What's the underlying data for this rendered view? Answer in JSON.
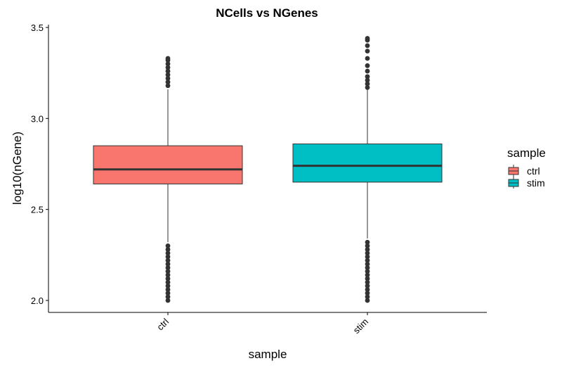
{
  "chart_data": {
    "type": "box",
    "title": "NCells vs NGenes",
    "xlabel": "sample",
    "ylabel": "log10(nGene)",
    "ylim": [
      1.95,
      3.52
    ],
    "yticks": [
      2.0,
      2.5,
      3.0,
      3.5
    ],
    "ytick_labels": [
      "2.0",
      "2.5",
      "3.0",
      "3.5"
    ],
    "categories": [
      "ctrl",
      "stim"
    ],
    "legend": {
      "title": "sample",
      "position": "right",
      "entries": [
        "ctrl",
        "stim"
      ]
    },
    "series": [
      {
        "name": "ctrl",
        "color": "#F8766D",
        "q1": 2.64,
        "median": 2.72,
        "q3": 2.85,
        "whisker_low": 2.32,
        "whisker_high": 3.16,
        "outliers": [
          2.0,
          2.02,
          2.04,
          2.06,
          2.08,
          2.1,
          2.12,
          2.14,
          2.16,
          2.18,
          2.2,
          2.22,
          2.24,
          2.26,
          2.28,
          2.3,
          3.18,
          3.2,
          3.22,
          3.24,
          3.26,
          3.28,
          3.3,
          3.32,
          3.33
        ]
      },
      {
        "name": "stim",
        "color": "#00BFC4",
        "q1": 2.65,
        "median": 2.74,
        "q3": 2.86,
        "whisker_low": 2.34,
        "whisker_high": 3.16,
        "outliers": [
          2.0,
          2.02,
          2.04,
          2.06,
          2.08,
          2.1,
          2.12,
          2.14,
          2.16,
          2.18,
          2.2,
          2.22,
          2.24,
          2.26,
          2.28,
          2.3,
          2.32,
          3.17,
          3.19,
          3.21,
          3.23,
          3.26,
          3.29,
          3.33,
          3.37,
          3.4,
          3.43,
          3.44
        ]
      }
    ]
  }
}
